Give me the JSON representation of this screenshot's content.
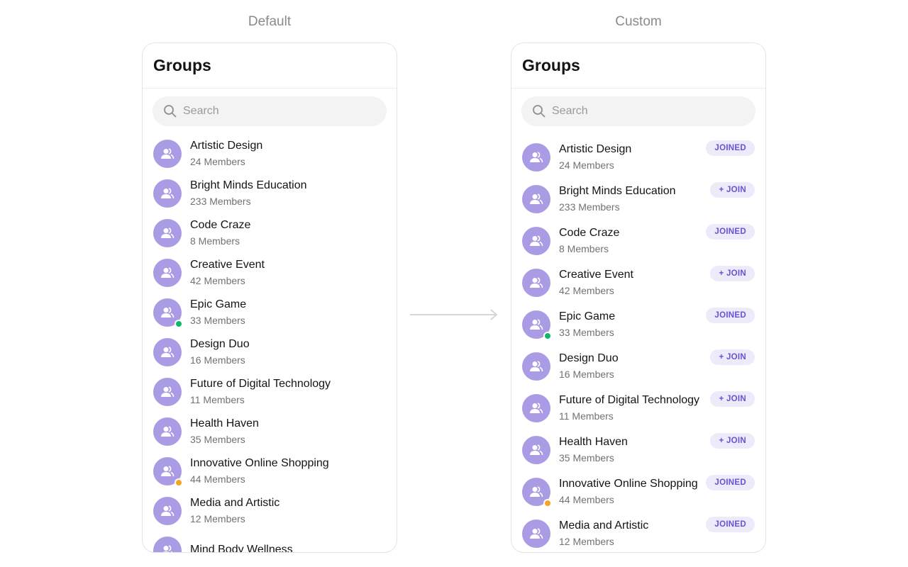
{
  "captions": {
    "left": "Default",
    "right": "Custom"
  },
  "left": {
    "title": "Groups",
    "search_placeholder": "Search",
    "groups": [
      {
        "name": "Artistic Design",
        "members": "24 Members"
      },
      {
        "name": "Bright Minds Education",
        "members": "233 Members"
      },
      {
        "name": "Code Craze",
        "members": "8 Members"
      },
      {
        "name": "Creative Event",
        "members": "42 Members"
      },
      {
        "name": "Epic Game",
        "members": "33 Members",
        "status": "password"
      },
      {
        "name": "Design Duo",
        "members": "16 Members"
      },
      {
        "name": "Future of Digital Technology",
        "members": "11 Members"
      },
      {
        "name": "Health Haven",
        "members": "35 Members"
      },
      {
        "name": "Innovative Online Shopping",
        "members": "44 Members",
        "status": "private"
      },
      {
        "name": "Media and Artistic",
        "members": "12 Members"
      },
      {
        "name": "Mind Body Wellness",
        "members": ""
      }
    ]
  },
  "right": {
    "title": "Groups",
    "search_placeholder": "Search",
    "groups": [
      {
        "name": "Artistic Design",
        "members": "24 Members",
        "action": "JOINED"
      },
      {
        "name": "Bright Minds Education",
        "members": "233 Members",
        "action": "+ JOIN"
      },
      {
        "name": "Code Craze",
        "members": "8 Members",
        "action": "JOINED"
      },
      {
        "name": "Creative Event",
        "members": "42 Members",
        "action": "+ JOIN"
      },
      {
        "name": "Epic Game",
        "members": "33 Members",
        "status": "password",
        "action": "JOINED"
      },
      {
        "name": "Design Duo",
        "members": "16 Members",
        "action": "+ JOIN"
      },
      {
        "name": "Future of Digital Technology",
        "members": "11 Members",
        "action": "+ JOIN"
      },
      {
        "name": "Health Haven",
        "members": "35 Members",
        "action": "+ JOIN"
      },
      {
        "name": "Innovative Online Shopping",
        "members": "44 Members",
        "status": "private",
        "action": "JOINED"
      },
      {
        "name": "Media and Artistic",
        "members": "12 Members",
        "action": "JOINED"
      }
    ]
  },
  "colors": {
    "avatar": "#a99be4",
    "accent": "#6852d6",
    "password": "#10b76a",
    "private": "#f5a524"
  },
  "icons": {
    "avatar": "group-icon",
    "search": "search-icon",
    "arrow": "arrow-right-icon"
  }
}
